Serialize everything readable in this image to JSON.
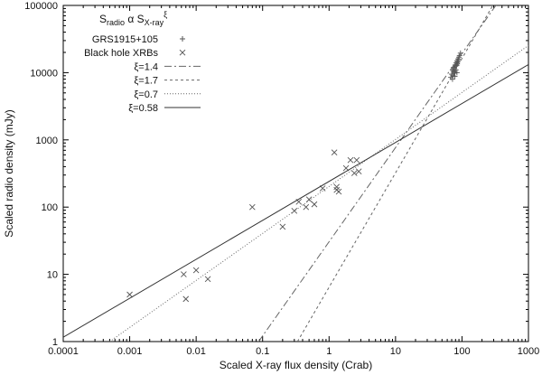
{
  "chart_data": {
    "type": "scatter",
    "title": "",
    "xlabel": "Scaled X-ray flux density (Crab)",
    "ylabel": "Scaled radio density (mJy)",
    "xscale": "log",
    "yscale": "log",
    "xlim": [
      0.0001,
      1000
    ],
    "ylim": [
      1,
      100000
    ],
    "x_ticks": [
      "0.0001",
      "0.001",
      "0.01",
      "0.1",
      "1",
      "10",
      "100",
      "1000"
    ],
    "y_ticks": [
      "1",
      "10",
      "100",
      "1000",
      "10000",
      "100000"
    ],
    "grid": false,
    "legend_position": "top-left",
    "legend": {
      "title_base": "S",
      "title_sub1": "radio",
      "title_alpha": "α",
      "title_sub2": "X-ray",
      "title_sup": "ξ"
    },
    "series": [
      {
        "name": "GRS1915+105",
        "kind": "points",
        "marker": "plus",
        "color": "#555555",
        "x": [
          68,
          70,
          72,
          73,
          74,
          75,
          76,
          77,
          78,
          79,
          80,
          81,
          82,
          83,
          84,
          85,
          86,
          87,
          88,
          90,
          92,
          95,
          72,
          78,
          84
        ],
        "y": [
          8500,
          9500,
          11000,
          9000,
          10500,
          12000,
          9800,
          11500,
          10200,
          13000,
          12500,
          11000,
          14000,
          12800,
          15000,
          13500,
          14500,
          16000,
          15200,
          17000,
          18000,
          19500,
          8000,
          8800,
          10000
        ]
      },
      {
        "name": "Black hole XRBs",
        "kind": "points",
        "marker": "cross",
        "color": "#555555",
        "x": [
          0.001,
          0.0065,
          0.007,
          0.01,
          0.015,
          0.07,
          0.2,
          0.3,
          0.35,
          0.45,
          0.5,
          0.6,
          0.8,
          1.2,
          1.3,
          1.3,
          1.4,
          1.8,
          2.1,
          2.4,
          2.6,
          2.8
        ],
        "y": [
          5,
          10,
          4.3,
          11.5,
          8.5,
          100,
          51,
          88,
          120,
          100,
          130,
          110,
          190,
          650,
          200,
          180,
          170,
          380,
          500,
          320,
          500,
          340
        ]
      },
      {
        "name": "ξ=1.4",
        "kind": "line",
        "dash": "8,3,2,3",
        "color": "#666666",
        "x": [
          0.0871,
          1000
        ],
        "y": [
          1,
          486000
        ]
      },
      {
        "name": "ξ=1.7",
        "kind": "line",
        "dash": "3,3",
        "color": "#666666",
        "x": [
          0.3346,
          1000
        ],
        "y": [
          1,
          816000
        ]
      },
      {
        "name": "ξ=0.7",
        "kind": "line",
        "dash": "1,2",
        "color": "#666666",
        "x": [
          0.0005,
          1000
        ],
        "y": [
          1,
          25400
        ]
      },
      {
        "name": "ξ=0.58",
        "kind": "line",
        "dash": "",
        "color": "#333333",
        "x": [
          0.0001,
          1000
        ],
        "y": [
          1.16,
          13200
        ]
      }
    ]
  }
}
